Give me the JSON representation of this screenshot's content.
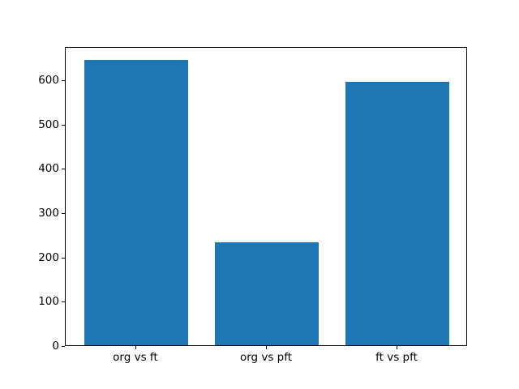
{
  "chart_data": {
    "type": "bar",
    "title": "",
    "xlabel": "",
    "ylabel": "",
    "categories": [
      "org vs ft",
      "org vs pft",
      "ft vs pft"
    ],
    "values": [
      645,
      233,
      595
    ],
    "x_positions": [
      0,
      1,
      2
    ],
    "yticks": [
      0,
      100,
      200,
      300,
      400,
      500,
      600
    ],
    "ylim": [
      0,
      677.25
    ],
    "xlim": [
      -0.54,
      2.54
    ],
    "bar_width": 0.8,
    "bar_color": "#1f77b4",
    "axis_color": "#000000",
    "text_color": "#000000",
    "background_color": "#ffffff",
    "grid": false,
    "legend": null
  }
}
